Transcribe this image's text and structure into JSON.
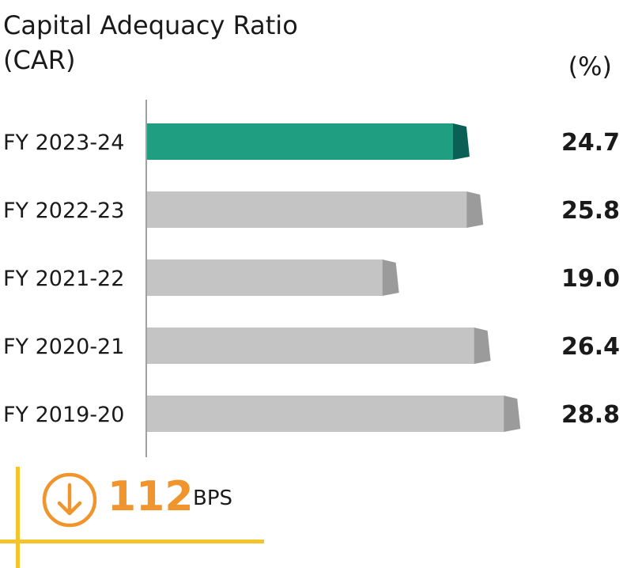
{
  "chart_data": {
    "type": "bar",
    "orientation": "horizontal",
    "title": "Capital Adequacy Ratio\n(CAR)",
    "unit": "(%)",
    "categories": [
      "FY 2023-24",
      "FY 2022-23",
      "FY 2021-22",
      "FY 2020-21",
      "FY 2019-20"
    ],
    "values": [
      24.7,
      25.8,
      19.0,
      26.4,
      28.8
    ],
    "value_labels": [
      "24.7",
      "25.8",
      "19.0",
      "26.4",
      "28.8"
    ],
    "xlim": [
      0,
      30
    ],
    "highlight_index": 0,
    "grid": false
  },
  "colors": {
    "highlight_bar": "#1f9e82",
    "highlight_cap": "#0c5f55",
    "bar": "#c4c4c4",
    "cap": "#9b9b9b",
    "axis": "#a0a0a0",
    "accent": "#f0952d",
    "accent_line": "#f5c32c"
  },
  "kpi": {
    "icon": "arrow-down-circle-icon",
    "value": "112",
    "unit": "BPS"
  }
}
